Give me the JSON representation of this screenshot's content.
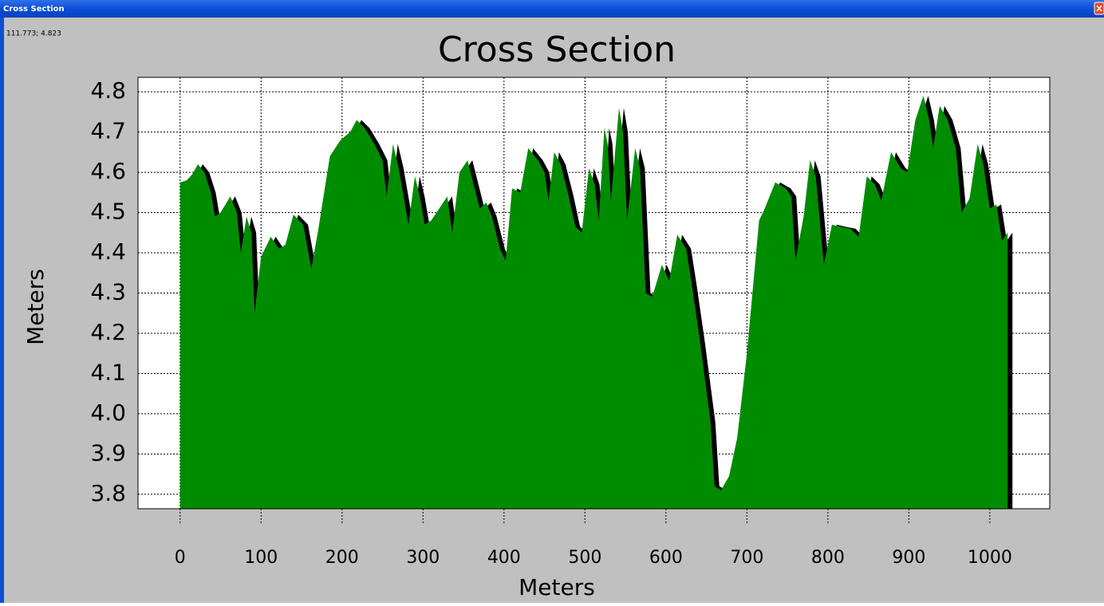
{
  "window": {
    "title": "Cross Section",
    "status": "111.773; 4.823"
  },
  "chart_data": {
    "type": "area",
    "title": "Cross Section",
    "x_label": "Meters",
    "y_label": "Meters",
    "color": "#008c00",
    "grid": true,
    "xlim": [
      -52,
      1074
    ],
    "ylim": [
      3.764,
      4.836
    ],
    "xticks": [
      0,
      100,
      200,
      300,
      400,
      500,
      600,
      700,
      800,
      900,
      1000
    ],
    "yticks": [
      3.8,
      3.9,
      {
        "value": 4,
        "label": "4.0"
      },
      4.1,
      4.2,
      4.3,
      4.4,
      4.5,
      4.6,
      4.7,
      4.8
    ],
    "x": [
      0,
      8,
      15,
      22,
      30,
      38,
      43,
      50,
      62,
      70,
      75,
      82,
      88,
      92,
      100,
      112,
      122,
      130,
      140,
      152,
      162,
      170,
      185,
      198,
      210,
      218,
      228,
      240,
      250,
      255,
      263,
      270,
      282,
      290,
      296,
      302,
      310,
      320,
      330,
      336,
      345,
      355,
      360,
      370,
      378,
      385,
      395,
      402,
      410,
      420,
      430,
      442,
      450,
      455,
      462,
      470,
      480,
      488,
      496,
      505,
      512,
      517,
      524,
      528,
      532,
      542,
      547,
      552,
      562,
      568,
      575,
      583,
      595,
      604,
      614,
      625,
      632,
      642,
      655,
      660,
      668,
      678,
      688,
      700,
      715,
      722,
      735,
      748,
      755,
      760,
      770,
      778,
      785,
      795,
      805,
      815,
      828,
      838,
      848,
      858,
      866,
      878,
      890,
      898,
      908,
      918,
      925,
      930,
      938,
      948,
      958,
      965,
      975,
      985,
      992,
      1000,
      1008,
      1015,
      1022
    ],
    "values": [
      4.575,
      4.58,
      4.595,
      4.62,
      4.6,
      4.55,
      4.49,
      4.5,
      4.54,
      4.5,
      4.4,
      4.49,
      4.45,
      4.25,
      4.39,
      4.44,
      4.41,
      4.42,
      4.495,
      4.47,
      4.36,
      4.45,
      4.64,
      4.68,
      4.7,
      4.73,
      4.71,
      4.67,
      4.63,
      4.54,
      4.67,
      4.61,
      4.47,
      4.59,
      4.54,
      4.47,
      4.48,
      4.51,
      4.54,
      4.45,
      4.6,
      4.63,
      4.59,
      4.51,
      4.525,
      4.49,
      4.41,
      4.38,
      4.56,
      4.55,
      4.66,
      4.63,
      4.6,
      4.53,
      4.65,
      4.62,
      4.54,
      4.465,
      4.45,
      4.61,
      4.57,
      4.48,
      4.71,
      4.67,
      4.53,
      4.76,
      4.7,
      4.48,
      4.66,
      4.61,
      4.3,
      4.29,
      4.37,
      4.33,
      4.445,
      4.41,
      4.32,
      4.18,
      3.98,
      3.82,
      3.81,
      3.845,
      3.94,
      4.15,
      4.48,
      4.51,
      4.575,
      4.56,
      4.54,
      4.38,
      4.49,
      4.63,
      4.59,
      4.37,
      4.47,
      4.465,
      4.46,
      4.44,
      4.59,
      4.57,
      4.53,
      4.65,
      4.61,
      4.6,
      4.73,
      4.79,
      4.73,
      4.66,
      4.765,
      4.73,
      4.66,
      4.5,
      4.535,
      4.67,
      4.62,
      4.51,
      4.52,
      4.43,
      4.45
    ]
  }
}
